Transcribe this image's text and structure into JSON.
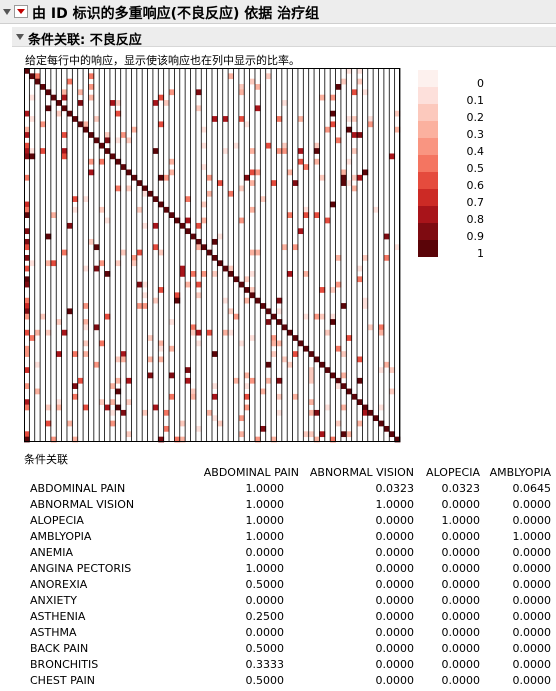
{
  "header": {
    "title": "由 ID 标识的多重响应(不良反应) 依据 治疗组"
  },
  "section": {
    "title": "条件关联: 不良反应"
  },
  "note": "给定每行中的响应，显示使该响应也在列中显示的比率。",
  "legend": {
    "labels": [
      "0",
      "0.1",
      "0.2",
      "0.3",
      "0.4",
      "0.5",
      "0.6",
      "0.7",
      "0.8",
      "0.9",
      "1"
    ],
    "colors": [
      "#fdf1ee",
      "#fde0db",
      "#fcc9bd",
      "#fbb19f",
      "#f99581",
      "#f47561",
      "#e54b3d",
      "#cc2a25",
      "#a8141a",
      "#7e0b11",
      "#5a0408"
    ]
  },
  "table": {
    "title": "条件关联",
    "columns": [
      "ABDOMINAL PAIN",
      "ABNORMAL VISION",
      "ALOPECIA",
      "AMBLYOPIA"
    ],
    "rows": [
      {
        "label": "ABDOMINAL PAIN",
        "values": [
          "1.0000",
          "0.0323",
          "0.0323",
          "0.0645"
        ]
      },
      {
        "label": "ABNORMAL VISION",
        "values": [
          "1.0000",
          "1.0000",
          "0.0000",
          "0.0000"
        ]
      },
      {
        "label": "ALOPECIA",
        "values": [
          "1.0000",
          "0.0000",
          "1.0000",
          "0.0000"
        ]
      },
      {
        "label": "AMBLYOPIA",
        "values": [
          "1.0000",
          "0.0000",
          "0.0000",
          "1.0000"
        ]
      },
      {
        "label": "ANEMIA",
        "values": [
          "0.0000",
          "0.0000",
          "0.0000",
          "0.0000"
        ]
      },
      {
        "label": "ANGINA PECTORIS",
        "values": [
          "1.0000",
          "0.0000",
          "0.0000",
          "0.0000"
        ]
      },
      {
        "label": "ANOREXIA",
        "values": [
          "0.5000",
          "0.0000",
          "0.0000",
          "0.0000"
        ]
      },
      {
        "label": "ANXIETY",
        "values": [
          "0.0000",
          "0.0000",
          "0.0000",
          "0.0000"
        ]
      },
      {
        "label": "ASTHENIA",
        "values": [
          "0.2500",
          "0.0000",
          "0.0000",
          "0.0000"
        ]
      },
      {
        "label": "ASTHMA",
        "values": [
          "0.0000",
          "0.0000",
          "0.0000",
          "0.0000"
        ]
      },
      {
        "label": "BACK PAIN",
        "values": [
          "0.5000",
          "0.0000",
          "0.0000",
          "0.0000"
        ]
      },
      {
        "label": "BRONCHITIS",
        "values": [
          "0.3333",
          "0.0000",
          "0.0000",
          "0.0000"
        ]
      },
      {
        "label": "CHEST PAIN",
        "values": [
          "0.5000",
          "0.0000",
          "0.0000",
          "0.0000"
        ]
      }
    ]
  },
  "chart_data": {
    "type": "heatmap",
    "n": 70,
    "value_range": [
      0,
      1
    ],
    "diagonal_value": 1
  }
}
